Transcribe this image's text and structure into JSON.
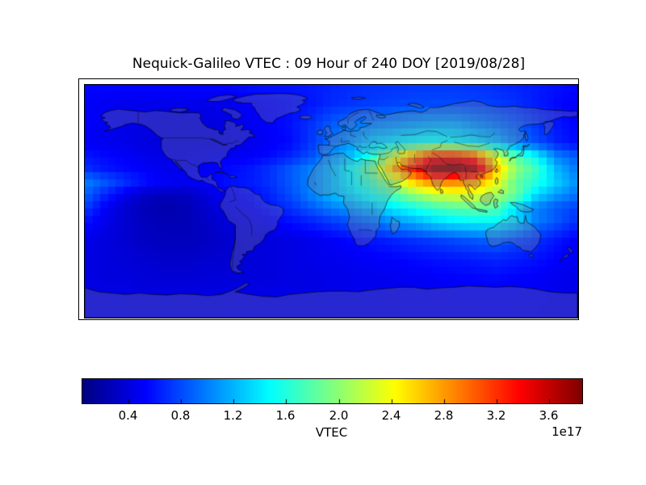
{
  "chart_data": {
    "type": "heatmap",
    "title": "Nequick-Galileo VTEC : 09 Hour of 240 DOY [2019/08/28]",
    "projection": "equirectangular world map",
    "lon_range": [
      -180,
      180
    ],
    "lat_range": [
      -90,
      90
    ],
    "colormap": "jet",
    "units_multiplier": "1e17",
    "vmin_1e17": 0.05,
    "vmax_1e17": 3.85,
    "colorbar": {
      "label": "VTEC",
      "exponent": "1e17",
      "orientation": "horizontal",
      "tick_labels": [
        "0.4",
        "0.8",
        "1.2",
        "1.6",
        "2.0",
        "2.4",
        "2.8",
        "3.2",
        "3.6"
      ],
      "tick_values": [
        0.4,
        0.8,
        1.2,
        1.6,
        2.0,
        2.4,
        2.8,
        3.2,
        3.6
      ]
    },
    "grid": {
      "comment": "VTEC values in units of 1e17 el/m^2, estimated from pixel colors; rows = lats (N to S), cols = lons (W to E)",
      "lons": [
        -180,
        -165,
        -150,
        -135,
        -120,
        -105,
        -90,
        -75,
        -60,
        -45,
        -30,
        -15,
        0,
        15,
        30,
        45,
        60,
        75,
        90,
        105,
        120,
        135,
        150,
        165,
        180
      ],
      "lats": [
        90,
        75,
        60,
        45,
        35,
        25,
        15,
        5,
        -5,
        -15,
        -30,
        -45,
        -60,
        -75,
        -90
      ],
      "values_1e17": [
        [
          0.55,
          0.55,
          0.55,
          0.55,
          0.55,
          0.55,
          0.55,
          0.55,
          0.58,
          0.6,
          0.6,
          0.62,
          0.65,
          0.68,
          0.7,
          0.7,
          0.72,
          0.72,
          0.72,
          0.7,
          0.68,
          0.65,
          0.62,
          0.58,
          0.55
        ],
        [
          0.5,
          0.48,
          0.45,
          0.45,
          0.45,
          0.45,
          0.45,
          0.46,
          0.5,
          0.52,
          0.55,
          0.6,
          0.68,
          0.72,
          0.75,
          0.78,
          0.8,
          0.8,
          0.8,
          0.78,
          0.75,
          0.7,
          0.62,
          0.55,
          0.5
        ],
        [
          0.52,
          0.48,
          0.45,
          0.42,
          0.4,
          0.4,
          0.4,
          0.42,
          0.48,
          0.52,
          0.58,
          0.7,
          0.85,
          0.95,
          1.0,
          1.05,
          1.1,
          1.15,
          1.15,
          1.05,
          0.95,
          0.85,
          0.72,
          0.6,
          0.52
        ],
        [
          0.5,
          0.46,
          0.43,
          0.4,
          0.4,
          0.4,
          0.4,
          0.42,
          0.45,
          0.5,
          0.55,
          0.72,
          0.95,
          1.1,
          1.3,
          1.4,
          1.5,
          1.55,
          1.5,
          1.4,
          1.25,
          1.0,
          0.82,
          0.65,
          0.55
        ],
        [
          0.6,
          0.55,
          0.5,
          0.45,
          0.43,
          0.43,
          0.45,
          0.48,
          0.5,
          0.55,
          0.65,
          0.8,
          1.05,
          1.25,
          1.6,
          2.2,
          2.8,
          3.3,
          3.35,
          3.1,
          2.3,
          1.8,
          1.45,
          1.0,
          0.85
        ],
        [
          0.7,
          0.6,
          0.55,
          0.5,
          0.45,
          0.45,
          0.5,
          0.55,
          0.6,
          0.7,
          0.85,
          1.0,
          1.2,
          1.5,
          1.9,
          2.7,
          3.3,
          3.8,
          3.85,
          3.7,
          2.7,
          2.0,
          1.7,
          1.2,
          0.95
        ],
        [
          1.0,
          0.85,
          0.7,
          0.58,
          0.5,
          0.48,
          0.52,
          0.58,
          0.62,
          0.7,
          0.85,
          1.0,
          1.2,
          1.45,
          1.75,
          2.1,
          2.6,
          2.9,
          2.9,
          2.8,
          2.4,
          1.85,
          1.6,
          1.3,
          1.05
        ],
        [
          0.9,
          0.65,
          0.45,
          0.3,
          0.28,
          0.3,
          0.4,
          0.5,
          0.55,
          0.65,
          0.8,
          1.0,
          1.2,
          1.35,
          1.55,
          1.75,
          2.0,
          2.2,
          2.3,
          2.3,
          2.1,
          1.9,
          1.35,
          1.1,
          0.95
        ],
        [
          0.75,
          0.5,
          0.35,
          0.25,
          0.22,
          0.25,
          0.35,
          0.45,
          0.5,
          0.6,
          0.7,
          0.85,
          1.0,
          1.1,
          1.25,
          1.4,
          1.55,
          1.7,
          1.8,
          1.85,
          1.8,
          1.35,
          1.0,
          0.85,
          0.75
        ],
        [
          0.6,
          0.45,
          0.35,
          0.28,
          0.25,
          0.26,
          0.32,
          0.4,
          0.45,
          0.5,
          0.58,
          0.65,
          0.75,
          0.85,
          0.95,
          1.1,
          1.2,
          1.35,
          1.45,
          1.5,
          1.5,
          1.35,
          1.0,
          0.85,
          0.7
        ],
        [
          0.45,
          0.4,
          0.35,
          0.3,
          0.28,
          0.28,
          0.3,
          0.35,
          0.38,
          0.4,
          0.42,
          0.45,
          0.5,
          0.55,
          0.6,
          0.65,
          0.7,
          0.75,
          0.8,
          0.85,
          0.9,
          0.8,
          0.7,
          0.6,
          0.5
        ],
        [
          0.42,
          0.4,
          0.38,
          0.35,
          0.33,
          0.33,
          0.35,
          0.36,
          0.38,
          0.4,
          0.42,
          0.44,
          0.46,
          0.48,
          0.5,
          0.52,
          0.55,
          0.58,
          0.6,
          0.62,
          0.65,
          0.62,
          0.58,
          0.52,
          0.48
        ],
        [
          0.42,
          0.4,
          0.4,
          0.38,
          0.37,
          0.37,
          0.38,
          0.38,
          0.4,
          0.4,
          0.42,
          0.42,
          0.44,
          0.45,
          0.46,
          0.47,
          0.48,
          0.5,
          0.52,
          0.53,
          0.55,
          0.52,
          0.5,
          0.46,
          0.44
        ],
        [
          0.45,
          0.44,
          0.44,
          0.43,
          0.43,
          0.43,
          0.43,
          0.44,
          0.44,
          0.45,
          0.45,
          0.45,
          0.46,
          0.46,
          0.47,
          0.47,
          0.48,
          0.48,
          0.49,
          0.49,
          0.5,
          0.49,
          0.48,
          0.47,
          0.46
        ],
        [
          0.46,
          0.46,
          0.46,
          0.46,
          0.46,
          0.46,
          0.46,
          0.46,
          0.46,
          0.46,
          0.46,
          0.46,
          0.47,
          0.47,
          0.47,
          0.47,
          0.48,
          0.48,
          0.48,
          0.48,
          0.48,
          0.48,
          0.47,
          0.47,
          0.46
        ]
      ]
    }
  }
}
